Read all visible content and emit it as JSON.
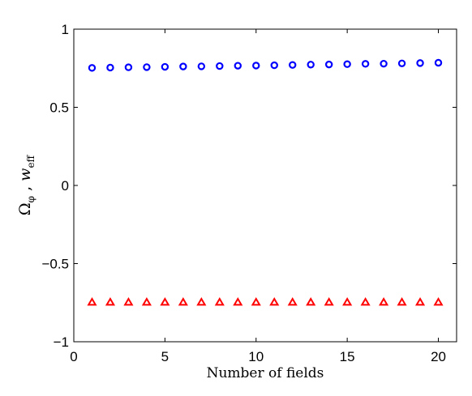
{
  "chart_data": {
    "type": "scatter",
    "title": "",
    "xlabel": "Number of fields",
    "ylabel": {
      "part1_base": "Ω",
      "part1_sub": "φ",
      "separator": " , ",
      "part2_base": "w",
      "part2_sub": "eff"
    },
    "xlim": [
      0,
      21
    ],
    "ylim": [
      -1,
      1
    ],
    "xticks": [
      0,
      5,
      10,
      15,
      20
    ],
    "xtick_labels": [
      "0",
      "5",
      "10",
      "15",
      "20"
    ],
    "yticks": [
      -1,
      -0.5,
      0,
      0.5,
      1
    ],
    "ytick_labels": [
      "−1",
      "−0.5",
      "0",
      "0.5",
      "1"
    ],
    "grid": false,
    "x": [
      1,
      2,
      3,
      4,
      5,
      6,
      7,
      8,
      9,
      10,
      11,
      12,
      13,
      14,
      15,
      16,
      17,
      18,
      19,
      20
    ],
    "series": [
      {
        "marker": "circle",
        "color": "#0000ff",
        "values": [
          0.752,
          0.754,
          0.756,
          0.757,
          0.759,
          0.761,
          0.762,
          0.764,
          0.766,
          0.767,
          0.769,
          0.771,
          0.773,
          0.774,
          0.776,
          0.778,
          0.779,
          0.781,
          0.783,
          0.785
        ]
      },
      {
        "marker": "triangle",
        "color": "#ff0000",
        "values": [
          -0.75,
          -0.75,
          -0.75,
          -0.75,
          -0.75,
          -0.75,
          -0.75,
          -0.75,
          -0.75,
          -0.75,
          -0.75,
          -0.75,
          -0.75,
          -0.75,
          -0.75,
          -0.75,
          -0.75,
          -0.75,
          -0.75,
          -0.75
        ]
      }
    ]
  }
}
